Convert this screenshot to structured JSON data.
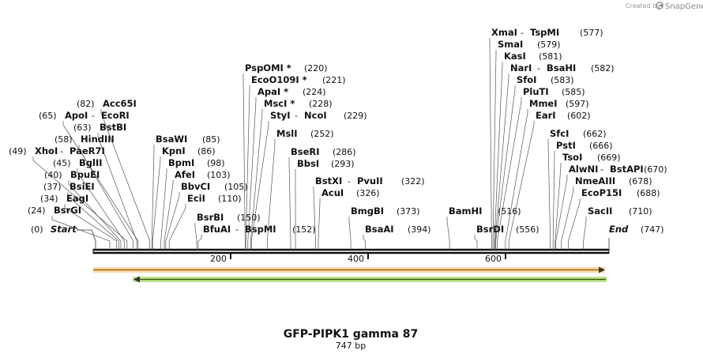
{
  "credit": {
    "prefix": "Created by",
    "brand": "SnapGene"
  },
  "map": {
    "title": "GFP-PIPK1 gamma 87",
    "length_label": "747 bp",
    "sequence_length": 747,
    "start_label": "Start",
    "start_pos": "(0)",
    "end_label": "End",
    "end_pos": "(747)",
    "ticks": [
      {
        "value": 200,
        "label": "200"
      },
      {
        "value": 400,
        "label": "400"
      },
      {
        "value": 600,
        "label": "600"
      }
    ],
    "colors": {
      "backbone": "#111111",
      "feature1": "#f7b24d",
      "feature2": "#75b324",
      "arrow": "#333333"
    }
  },
  "features": [
    {
      "name": "feature-orange",
      "start": 0,
      "end": 747,
      "direction": "forward"
    },
    {
      "name": "feature-green",
      "start": 57,
      "end": 740,
      "direction": "reverse"
    }
  ],
  "sites": [
    {
      "id": "xmai",
      "names": [
        "XmaI",
        "TspMI"
      ],
      "pos_label": "(577)",
      "pos": 577
    },
    {
      "id": "smai",
      "names": [
        "SmaI"
      ],
      "pos_label": "(579)",
      "pos": 579
    },
    {
      "id": "kasi",
      "names": [
        "KasI"
      ],
      "pos_label": "(581)",
      "pos": 581
    },
    {
      "id": "nari",
      "names": [
        "NarI",
        "BsaHI"
      ],
      "pos_label": "(582)",
      "pos": 582
    },
    {
      "id": "sfoi",
      "names": [
        "SfoI"
      ],
      "pos_label": "(583)",
      "pos": 583
    },
    {
      "id": "pluti",
      "names": [
        "PluTI"
      ],
      "pos_label": "(585)",
      "pos": 585
    },
    {
      "id": "mmei",
      "names": [
        "MmeI"
      ],
      "pos_label": "(597)",
      "pos": 597
    },
    {
      "id": "eari",
      "names": [
        "EarI"
      ],
      "pos_label": "(602)",
      "pos": 602
    },
    {
      "id": "pspomi",
      "names": [
        "PspOMI *"
      ],
      "pos_label": "(220)",
      "pos": 220
    },
    {
      "id": "ecoo109i",
      "names": [
        "EcoO109I *"
      ],
      "pos_label": "(221)",
      "pos": 221
    },
    {
      "id": "apai",
      "names": [
        "ApaI *"
      ],
      "pos_label": "(224)",
      "pos": 224
    },
    {
      "id": "msci",
      "names": [
        "MscI *"
      ],
      "pos_label": "(228)",
      "pos": 228
    },
    {
      "id": "styi",
      "names": [
        "StyI",
        "NcoI"
      ],
      "pos_label": "(229)",
      "pos": 229
    },
    {
      "id": "msli",
      "names": [
        "MslI"
      ],
      "pos_label": "(252)",
      "pos": 252
    },
    {
      "id": "bseri",
      "names": [
        "BseRI"
      ],
      "pos_label": "(286)",
      "pos": 286
    },
    {
      "id": "bbsi",
      "names": [
        "BbsI"
      ],
      "pos_label": "(293)",
      "pos": 293
    },
    {
      "id": "bstxi",
      "names": [
        "BstXI",
        "PvuII"
      ],
      "pos_label": "(322)",
      "pos": 322
    },
    {
      "id": "acui",
      "names": [
        "AcuI"
      ],
      "pos_label": "(326)",
      "pos": 326
    },
    {
      "id": "bmgbi",
      "names": [
        "BmgBI"
      ],
      "pos_label": "(373)",
      "pos": 373
    },
    {
      "id": "bsaai",
      "names": [
        "BsaAI"
      ],
      "pos_label": "(394)",
      "pos": 394
    },
    {
      "id": "bamhi",
      "names": [
        "BamHI"
      ],
      "pos_label": "(516)",
      "pos": 516
    },
    {
      "id": "bsrdi",
      "names": [
        "BsrDI"
      ],
      "pos_label": "(556)",
      "pos": 556
    },
    {
      "id": "acc65i",
      "names": [
        "Acc65I"
      ],
      "pos_label": "(82)",
      "pos": 82
    },
    {
      "id": "apoi",
      "names": [
        "ApoI",
        "EcoRI"
      ],
      "pos_label": "(65)",
      "pos": 65
    },
    {
      "id": "bstbi",
      "names": [
        "BstBI"
      ],
      "pos_label": "(63)",
      "pos": 63
    },
    {
      "id": "hindiii",
      "names": [
        "HindIII"
      ],
      "pos_label": "(58)",
      "pos": 58
    },
    {
      "id": "xhoi",
      "names": [
        "XhoI",
        "PaeR7I"
      ],
      "pos_label": "(49)",
      "pos": 49
    },
    {
      "id": "bglii",
      "names": [
        "BglII"
      ],
      "pos_label": "(45)",
      "pos": 45
    },
    {
      "id": "bpuei",
      "names": [
        "BpuEI"
      ],
      "pos_label": "(40)",
      "pos": 40
    },
    {
      "id": "bsiei",
      "names": [
        "BsiEI"
      ],
      "pos_label": "(37)",
      "pos": 37
    },
    {
      "id": "eagi",
      "names": [
        "EagI"
      ],
      "pos_label": "(34)",
      "pos": 34
    },
    {
      "id": "bsrgi",
      "names": [
        "BsrGI"
      ],
      "pos_label": "(24)",
      "pos": 24
    },
    {
      "id": "bsawi",
      "names": [
        "BsaWI"
      ],
      "pos_label": "(85)",
      "pos": 85
    },
    {
      "id": "kpni",
      "names": [
        "KpnI"
      ],
      "pos_label": "(86)",
      "pos": 86
    },
    {
      "id": "bpmi",
      "names": [
        "BpmI"
      ],
      "pos_label": "(98)",
      "pos": 98
    },
    {
      "id": "afei",
      "names": [
        "AfeI"
      ],
      "pos_label": "(103)",
      "pos": 103
    },
    {
      "id": "bbvci",
      "names": [
        "BbvCI"
      ],
      "pos_label": "(105)",
      "pos": 105
    },
    {
      "id": "ecii",
      "names": [
        "EciI"
      ],
      "pos_label": "(110)",
      "pos": 110
    },
    {
      "id": "bsrbi",
      "names": [
        "BsrBI"
      ],
      "pos_label": "(150)",
      "pos": 150
    },
    {
      "id": "bfuai",
      "names": [
        "BfuAI",
        "BspMI"
      ],
      "pos_label": "(152)",
      "pos": 152
    },
    {
      "id": "sfci",
      "names": [
        "SfcI"
      ],
      "pos_label": "(662)",
      "pos": 662
    },
    {
      "id": "psti",
      "names": [
        "PstI"
      ],
      "pos_label": "(666)",
      "pos": 666
    },
    {
      "id": "tsoi",
      "names": [
        "TsoI"
      ],
      "pos_label": "(669)",
      "pos": 669
    },
    {
      "id": "alwni",
      "names": [
        "AlwNI",
        "BstAPI"
      ],
      "pos_label": "(670)",
      "pos": 670
    },
    {
      "id": "nmeaiii",
      "names": [
        "NmeAIII"
      ],
      "pos_label": "(678)",
      "pos": 678
    },
    {
      "id": "ecop15i",
      "names": [
        "EcoP15I"
      ],
      "pos_label": "(688)",
      "pos": 688
    },
    {
      "id": "sacii",
      "names": [
        "SacII"
      ],
      "pos_label": "(710)",
      "pos": 710
    }
  ]
}
